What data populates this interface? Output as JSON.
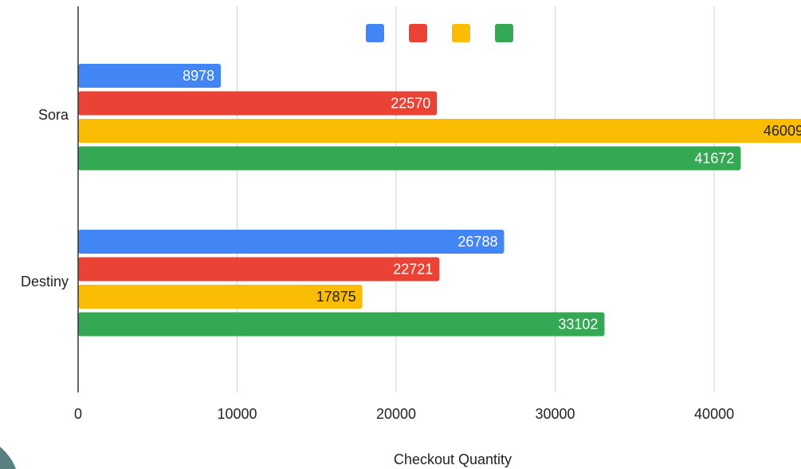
{
  "chart_data": {
    "type": "bar",
    "orientation": "horizontal",
    "categories": [
      "Sora",
      "Destiny"
    ],
    "series": [
      {
        "color": "#4285F4",
        "values": [
          8978,
          26788
        ],
        "label_color": "#ffffff"
      },
      {
        "color": "#EA4335",
        "values": [
          22570,
          22721
        ],
        "label_color": "#ffffff"
      },
      {
        "color": "#FBBC04",
        "values": [
          46009,
          17875
        ],
        "label_color": "#222222"
      },
      {
        "color": "#34A853",
        "values": [
          41672,
          33102
        ],
        "label_color": "#ffffff"
      }
    ],
    "xlabel": "Checkout Quantity",
    "ylabel": "",
    "xlim": [
      0,
      46000
    ],
    "x_ticks": [
      0,
      10000,
      20000,
      30000,
      40000
    ],
    "x_tick_labels": [
      "0",
      "10000",
      "20000",
      "30000",
      "40000"
    ],
    "grid": true,
    "legend": "top-center",
    "data_labels": true
  },
  "decoration": {
    "corner_color": "#5a7f82"
  }
}
